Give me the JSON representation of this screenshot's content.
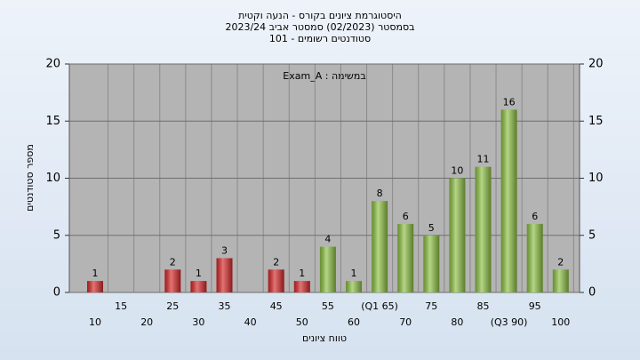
{
  "chart_data": {
    "type": "bar",
    "title": [
      "היסטוגרמת ציונים בקורס - הנעה וקטית",
      "בסמסטר  (02/2023)  סמסטר אביב 2023/24",
      "סטודנטים רשומים - 101"
    ],
    "annotation": "Exam_A : במשימה",
    "ylabel": "מספר סטודנטים",
    "xlabel": "טווח ציונים",
    "categories": [
      "10",
      "15",
      "20",
      "25",
      "30",
      "35",
      "40",
      "45",
      "50",
      "55",
      "60",
      "(Q1 65)",
      "70",
      "75",
      "80",
      "85",
      "(Q3 90)",
      "95",
      "100"
    ],
    "values": [
      1,
      0,
      0,
      2,
      1,
      3,
      0,
      2,
      1,
      4,
      1,
      8,
      6,
      5,
      10,
      11,
      16,
      6,
      2
    ],
    "colors": [
      "#d62828",
      "#d62828",
      "#d62828",
      "#d62828",
      "#d62828",
      "#d62828",
      "#d62828",
      "#d62828",
      "#d62828",
      "#8cc043",
      "#8cc043",
      "#8cc043",
      "#8cc043",
      "#8cc043",
      "#8cc043",
      "#8cc043",
      "#8cc043",
      "#8cc043",
      "#8cc043"
    ],
    "ylim": [
      0,
      20
    ],
    "yticks": [
      0,
      5,
      10,
      15,
      20
    ],
    "grid": true
  }
}
